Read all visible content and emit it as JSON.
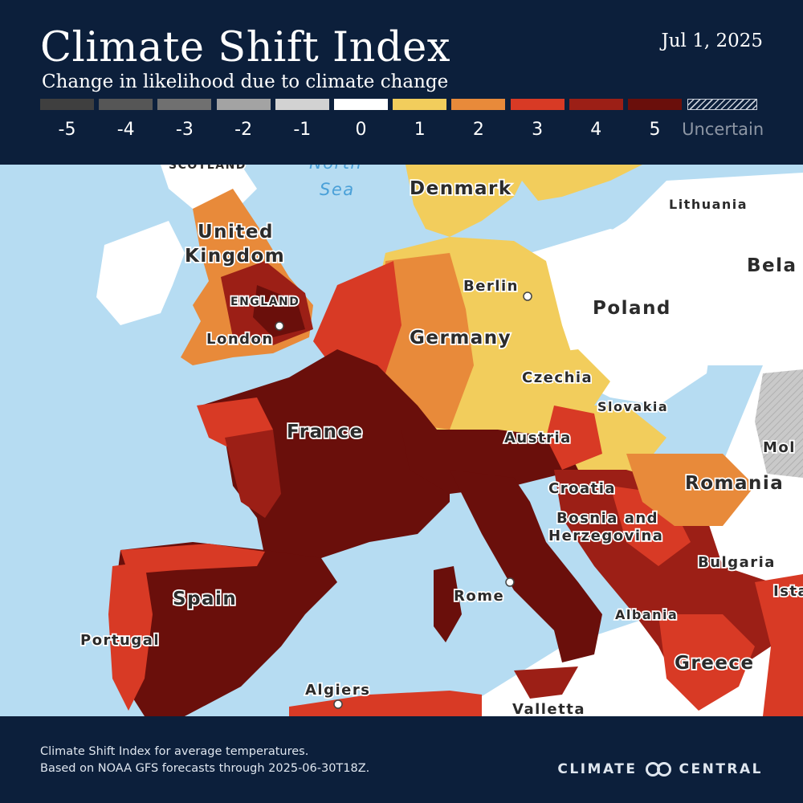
{
  "header": {
    "title": "Climate Shift Index",
    "subtitle": "Change in likelihood due to climate change",
    "date": "Jul 1, 2025"
  },
  "legend": {
    "items": [
      {
        "label": "-5",
        "color": "#3f3f3f"
      },
      {
        "label": "-4",
        "color": "#565656"
      },
      {
        "label": "-3",
        "color": "#707070"
      },
      {
        "label": "-2",
        "color": "#a3a3a3"
      },
      {
        "label": "-1",
        "color": "#d2d2d2"
      },
      {
        "label": "0",
        "color": "#ffffff"
      },
      {
        "label": "1",
        "color": "#f2cd5c"
      },
      {
        "label": "2",
        "color": "#e88a3a"
      },
      {
        "label": "3",
        "color": "#d83a25"
      },
      {
        "label": "4",
        "color": "#9c1f16"
      },
      {
        "label": "5",
        "color": "#6a0f0b"
      }
    ],
    "uncertain_label": "Uncertain"
  },
  "map": {
    "water_color": "#b6dcf2",
    "labels": {
      "scotland": "SCOTLAND",
      "north_sea_1": "North",
      "north_sea_2": "Sea",
      "denmark": "Denmark",
      "lithuania": "Lithuania",
      "uk_1": "United",
      "uk_2": "Kingdom",
      "belarus": "Bela",
      "berlin": "Berlin",
      "england": "ENGLAND",
      "poland": "Poland",
      "london": "London",
      "germany": "Germany",
      "czechia": "Czechia",
      "slovakia": "Slovakia",
      "france": "France",
      "austria": "Austria",
      "moldova": "Mol",
      "croatia": "Croatia",
      "romania": "Romania",
      "bosnia_1": "Bosnia and",
      "bosnia_2": "Herzegovina",
      "bulgaria": "Bulgaria",
      "spain": "Spain",
      "rome": "Rome",
      "istanbul": "Ista",
      "albania": "Albania",
      "portugal": "Portugal",
      "greece": "Greece",
      "algiers": "Algiers",
      "valletta": "Valletta"
    }
  },
  "footer": {
    "note_line1": "Climate Shift Index for average temperatures.",
    "note_line2": "Based on NOAA GFS forecasts through 2025-06-30T18Z.",
    "brand_left": "CLIMATE",
    "brand_right": "CENTRAL"
  }
}
